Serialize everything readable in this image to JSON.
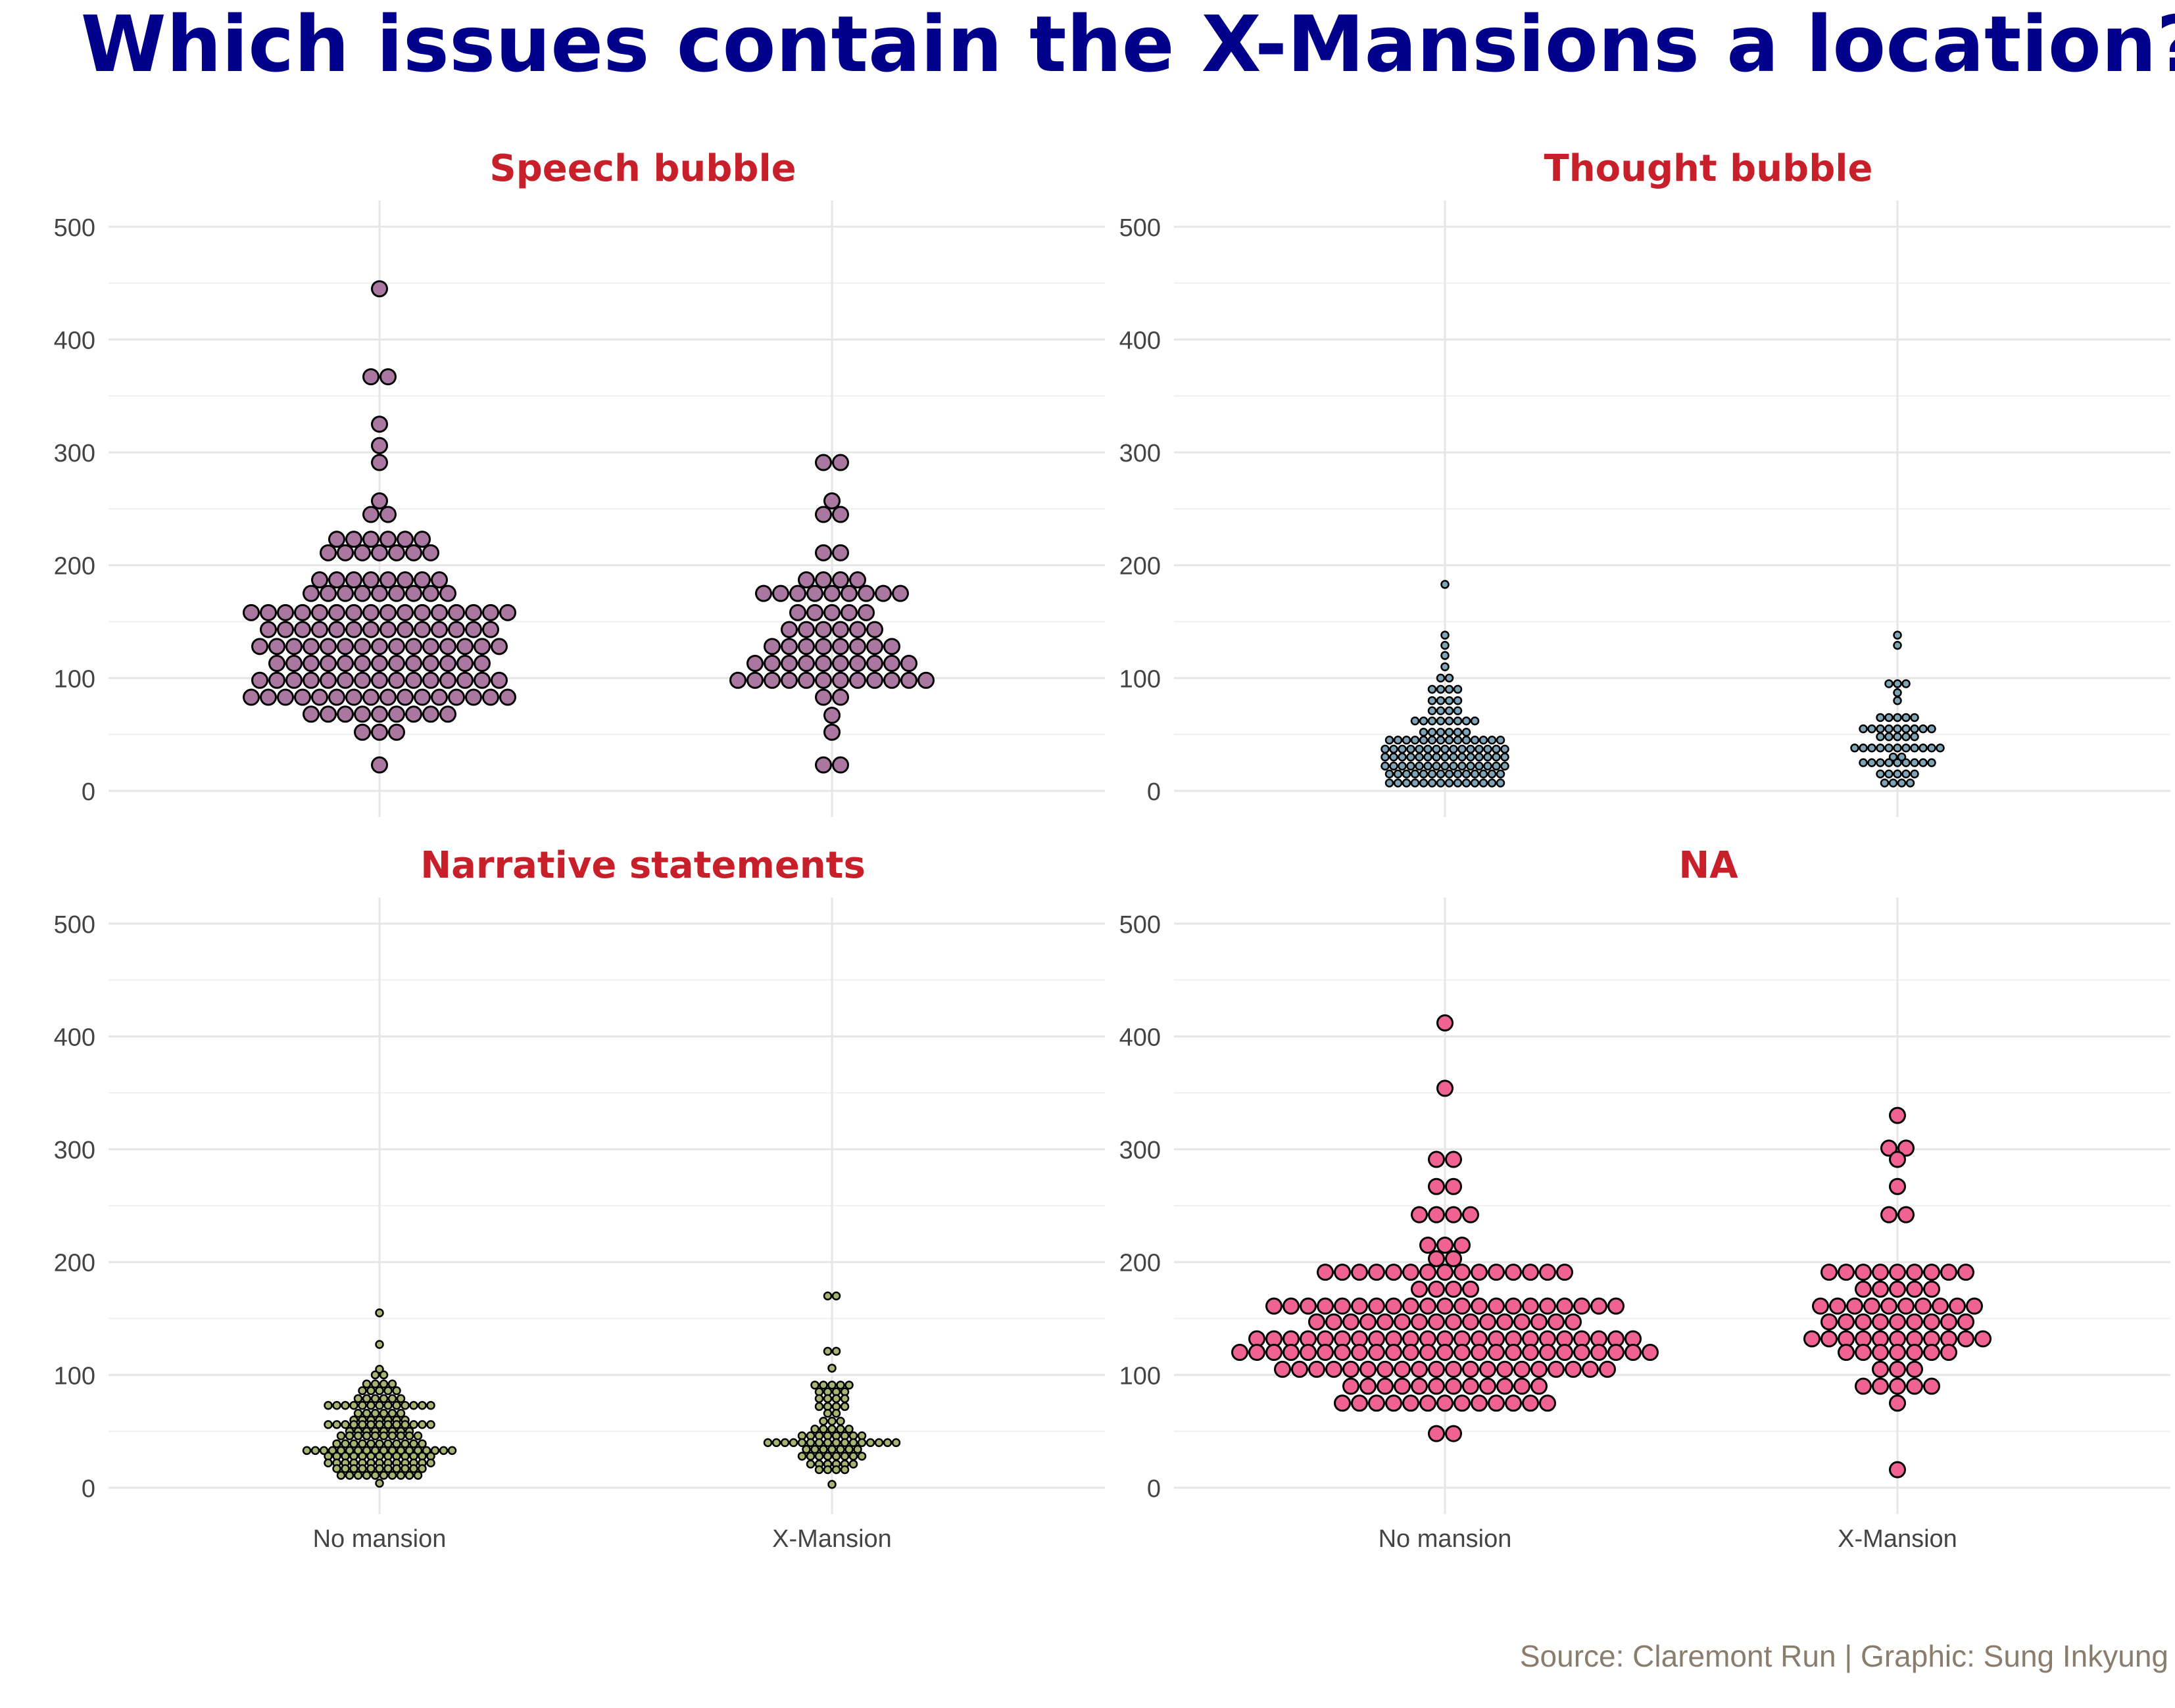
{
  "title": "Which issues contain the X-Mansions a location?",
  "caption": "Source: Claremont Run | Graphic: Sung Inkyung",
  "colors": {
    "title": "#00008b",
    "facet_title": "#c8202a",
    "caption": "#8a7d6e",
    "speech_bubble": "#a9779f",
    "thought_bubble": "#7ea4b6",
    "narrative": "#a7b573",
    "na": "#f06292",
    "point_outline": "#000000"
  },
  "chart_data": {
    "type": "scatter",
    "subtype": "beeswarm",
    "categories": [
      "No mansion",
      "X-Mansion"
    ],
    "ylim": [
      0,
      520
    ],
    "yticks": [
      0,
      100,
      200,
      300,
      400,
      500
    ],
    "grid": true,
    "facets": [
      {
        "title": "Speech bubble",
        "color_key": "speech_bubble",
        "dot_size": "large",
        "groups": [
          {
            "category": "No mansion",
            "bins": [
              [
                445,
                1
              ],
              [
                367,
                2
              ],
              [
                325,
                1
              ],
              [
                306,
                1
              ],
              [
                291,
                1
              ],
              [
                257,
                1
              ],
              [
                245,
                2
              ],
              [
                223,
                6
              ],
              [
                211,
                7
              ],
              [
                187,
                8
              ],
              [
                175,
                9
              ],
              [
                158,
                16
              ],
              [
                143,
                14
              ],
              [
                128,
                15
              ],
              [
                113,
                13
              ],
              [
                98,
                15
              ],
              [
                83,
                16
              ],
              [
                68,
                9
              ],
              [
                52,
                3
              ],
              [
                23,
                1
              ]
            ]
          },
          {
            "category": "X-Mansion",
            "bins": [
              [
                291,
                2
              ],
              [
                257,
                1
              ],
              [
                245,
                2
              ],
              [
                211,
                2
              ],
              [
                187,
                4
              ],
              [
                175,
                9
              ],
              [
                158,
                5
              ],
              [
                143,
                6
              ],
              [
                128,
                8
              ],
              [
                113,
                10
              ],
              [
                98,
                12
              ],
              [
                83,
                2
              ],
              [
                67,
                1
              ],
              [
                52,
                1
              ],
              [
                23,
                2
              ]
            ]
          }
        ]
      },
      {
        "title": "Thought bubble",
        "color_key": "thought_bubble",
        "dot_size": "small",
        "groups": [
          {
            "category": "No mansion",
            "bins": [
              [
                183,
                1
              ],
              [
                138,
                1
              ],
              [
                129,
                1
              ],
              [
                120,
                1
              ],
              [
                110,
                1
              ],
              [
                100,
                2
              ],
              [
                90,
                4
              ],
              [
                80,
                4
              ],
              [
                71,
                4
              ],
              [
                62,
                8
              ],
              [
                52,
                6
              ],
              [
                45,
                14
              ],
              [
                37,
                15
              ],
              [
                30,
                15
              ],
              [
                22,
                15
              ],
              [
                15,
                14
              ],
              [
                7,
                14
              ]
            ]
          },
          {
            "category": "X-Mansion",
            "bins": [
              [
                138,
                1
              ],
              [
                129,
                1
              ],
              [
                103,
                0
              ],
              [
                95,
                3
              ],
              [
                87,
                1
              ],
              [
                80,
                1
              ],
              [
                65,
                5
              ],
              [
                55,
                9
              ],
              [
                48,
                5
              ],
              [
                38,
                11
              ],
              [
                30,
                2
              ],
              [
                25,
                9
              ],
              [
                15,
                5
              ],
              [
                7,
                4
              ]
            ]
          }
        ]
      },
      {
        "title": "Narrative statements",
        "color_key": "narrative",
        "dot_size": "small",
        "groups": [
          {
            "category": "No mansion",
            "bins": [
              [
                155,
                1
              ],
              [
                127,
                1
              ],
              [
                105,
                1
              ],
              [
                100,
                2
              ],
              [
                92,
                4
              ],
              [
                86,
                5
              ],
              [
                79,
                6
              ],
              [
                73,
                13
              ],
              [
                66,
                6
              ],
              [
                60,
                7
              ],
              [
                56,
                13
              ],
              [
                50,
                8
              ],
              [
                46,
                10
              ],
              [
                39,
                11
              ],
              [
                33,
                18
              ],
              [
                28,
                13
              ],
              [
                22,
                13
              ],
              [
                17,
                11
              ],
              [
                11,
                10
              ],
              [
                4,
                1
              ]
            ]
          },
          {
            "category": "X-Mansion",
            "bins": [
              [
                170,
                2
              ],
              [
                121,
                2
              ],
              [
                106,
                1
              ],
              [
                91,
                5
              ],
              [
                85,
                4
              ],
              [
                79,
                4
              ],
              [
                72,
                4
              ],
              [
                66,
                2
              ],
              [
                59,
                3
              ],
              [
                52,
                5
              ],
              [
                46,
                8
              ],
              [
                40,
                16
              ],
              [
                34,
                7
              ],
              [
                28,
                8
              ],
              [
                21,
                6
              ],
              [
                16,
                4
              ],
              [
                3,
                1
              ]
            ]
          }
        ]
      },
      {
        "title": "NA",
        "color_key": "na",
        "dot_size": "large",
        "groups": [
          {
            "category": "No mansion",
            "bins": [
              [
                412,
                1
              ],
              [
                354,
                1
              ],
              [
                291,
                2
              ],
              [
                267,
                2
              ],
              [
                242,
                4
              ],
              [
                215,
                3
              ],
              [
                203,
                2
              ],
              [
                191,
                15
              ],
              [
                176,
                4
              ],
              [
                161,
                21
              ],
              [
                147,
                16
              ],
              [
                132,
                23
              ],
              [
                120,
                25
              ],
              [
                105,
                20
              ],
              [
                90,
                12
              ],
              [
                75,
                13
              ],
              [
                48,
                2
              ]
            ]
          },
          {
            "category": "X-Mansion",
            "bins": [
              [
                330,
                1
              ],
              [
                301,
                2
              ],
              [
                291,
                1
              ],
              [
                267,
                1
              ],
              [
                242,
                2
              ],
              [
                191,
                9
              ],
              [
                176,
                5
              ],
              [
                161,
                10
              ],
              [
                147,
                9
              ],
              [
                132,
                11
              ],
              [
                120,
                7
              ],
              [
                105,
                3
              ],
              [
                90,
                5
              ],
              [
                75,
                1
              ],
              [
                16,
                1
              ]
            ]
          }
        ]
      }
    ]
  }
}
